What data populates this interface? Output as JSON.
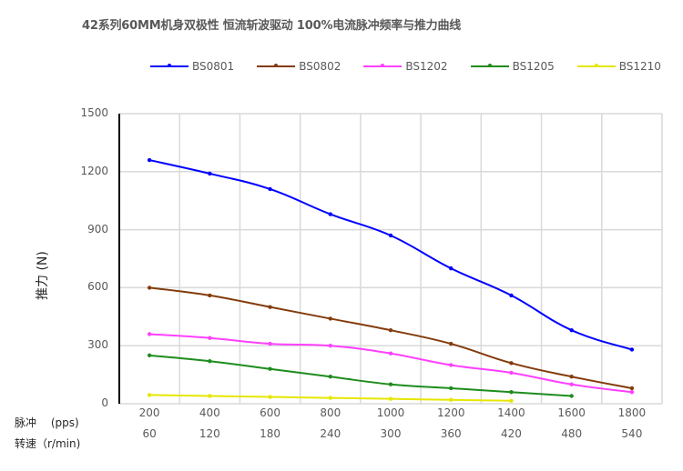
{
  "title": "42系列60MM机身双极性 恒流斩波驱动 100%电流脉冲频率与推力曲线",
  "legend": [
    {
      "name": "BS0801",
      "color": "#0000ff"
    },
    {
      "name": "BS0802",
      "color": "#843c0c"
    },
    {
      "name": "BS1202",
      "color": "#ff40ff"
    },
    {
      "name": "BS1205",
      "color": "#1e8c1e"
    },
    {
      "name": "BS1210",
      "color": "#e6e600"
    }
  ],
  "axes": {
    "ylabel": "推力 (N)",
    "row1_label": "脉冲　 (pps)",
    "row2_label": "转速（r/min)",
    "yticks": [
      "0",
      "300",
      "600",
      "900",
      "1200",
      "1500"
    ],
    "xticks_pps": [
      "200",
      "400",
      "600",
      "800",
      "1000",
      "1200",
      "1400",
      "1600",
      "1800"
    ],
    "xticks_rpm": [
      "60",
      "120",
      "180",
      "240",
      "300",
      "360",
      "420",
      "480",
      "540"
    ]
  },
  "chart_data": {
    "type": "line",
    "title": "42系列60MM机身双极性 恒流斩波驱动 100%电流脉冲频率与推力曲线",
    "xlabel": "脉冲 (pps) / 转速 (r/min)",
    "ylabel": "推力 (N)",
    "categories": [
      200,
      400,
      600,
      800,
      1000,
      1200,
      1400,
      1600,
      1800
    ],
    "categories_rpm": [
      60,
      120,
      180,
      240,
      300,
      360,
      420,
      480,
      540
    ],
    "ylim": [
      0,
      1500
    ],
    "yticks": [
      0,
      300,
      600,
      900,
      1200,
      1500
    ],
    "grid": true,
    "legend_position": "top",
    "series": [
      {
        "name": "BS0801",
        "color": "#0000ff",
        "values": [
          1260,
          1190,
          1110,
          980,
          870,
          700,
          560,
          380,
          280
        ]
      },
      {
        "name": "BS0802",
        "color": "#843c0c",
        "values": [
          600,
          560,
          500,
          440,
          380,
          310,
          210,
          140,
          80
        ]
      },
      {
        "name": "BS1202",
        "color": "#ff40ff",
        "values": [
          360,
          340,
          310,
          300,
          260,
          200,
          160,
          100,
          60
        ]
      },
      {
        "name": "BS1205",
        "color": "#1e8c1e",
        "values": [
          250,
          220,
          180,
          140,
          100,
          80,
          60,
          40,
          null
        ]
      },
      {
        "name": "BS1210",
        "color": "#e6e600",
        "values": [
          45,
          40,
          35,
          30,
          25,
          20,
          15,
          null,
          null
        ]
      }
    ]
  }
}
